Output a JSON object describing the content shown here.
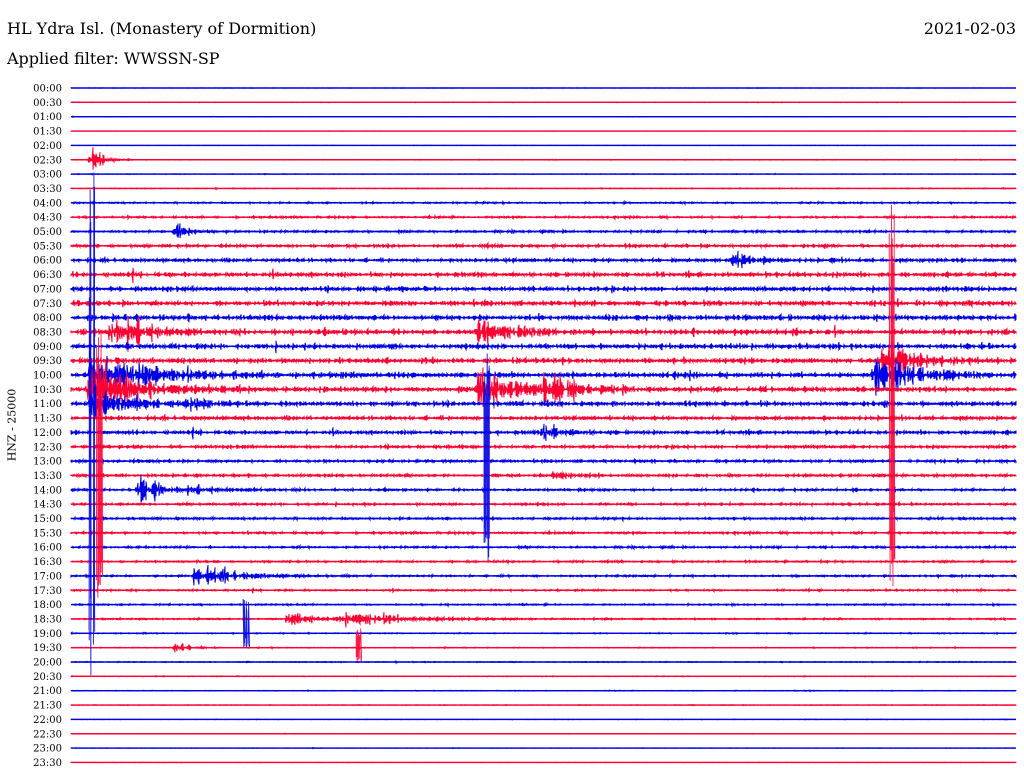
{
  "header": {
    "station": "HL Ydra Isl. (Monastery of Dormition)",
    "date": "2021-02-03",
    "filter": "Applied filter: WWSSN-SP"
  },
  "ylabel": "HNZ - 25000",
  "colors": {
    "even_trace": "#0000e6",
    "odd_trace": "#ff0033",
    "background": "#ffffff"
  },
  "chart_data": {
    "type": "line",
    "title": "HL Ydra Isl. (Monastery of Dormition)",
    "ylabel": "HNZ - 25000",
    "rows": [
      "00:00",
      "00:30",
      "01:00",
      "01:30",
      "02:00",
      "02:30",
      "03:00",
      "03:30",
      "04:00",
      "04:30",
      "05:00",
      "05:30",
      "06:00",
      "06:30",
      "07:00",
      "07:30",
      "08:00",
      "08:30",
      "09:00",
      "09:30",
      "10:00",
      "10:30",
      "11:00",
      "11:30",
      "12:00",
      "12:30",
      "13:00",
      "13:30",
      "14:00",
      "14:30",
      "15:00",
      "15:30",
      "16:00",
      "16:30",
      "17:00",
      "17:30",
      "18:00",
      "18:30",
      "19:00",
      "19:30",
      "20:00",
      "20:30",
      "21:00",
      "21:30",
      "22:00",
      "22:30",
      "23:00",
      "23:30"
    ],
    "noise_level": [
      0.2,
      0.4,
      0.3,
      0.2,
      0.3,
      0.6,
      0.5,
      0.7,
      1.5,
      1.8,
      2.2,
      2.8,
      3.5,
      4.2,
      4.5,
      4.8,
      5.0,
      5.2,
      5.0,
      4.8,
      4.8,
      4.6,
      4.2,
      3.8,
      3.5,
      3.0,
      2.8,
      2.6,
      2.4,
      2.2,
      2.2,
      2.0,
      2.0,
      1.8,
      1.8,
      1.6,
      1.5,
      1.4,
      1.0,
      0.8,
      0.8,
      0.6,
      0.6,
      0.5,
      0.4,
      0.4,
      0.3,
      0.3
    ],
    "events": [
      {
        "row": 5,
        "x": 0.02,
        "amp": 28,
        "dur": 0.01
      },
      {
        "row": 10,
        "x": 0.11,
        "amp": 10,
        "dur": 0.015
      },
      {
        "row": 12,
        "x": 0.7,
        "amp": 12,
        "dur": 0.02
      },
      {
        "row": 17,
        "x": 0.04,
        "amp": 30,
        "dur": 0.03
      },
      {
        "row": 17,
        "x": 0.43,
        "amp": 22,
        "dur": 0.03
      },
      {
        "row": 19,
        "x": 0.86,
        "amp": 28,
        "dur": 0.03
      },
      {
        "row": 20,
        "x": 0.02,
        "amp": 40,
        "dur": 0.05
      },
      {
        "row": 20,
        "x": 0.85,
        "amp": 34,
        "dur": 0.04
      },
      {
        "row": 21,
        "x": 0.02,
        "amp": 36,
        "dur": 0.05
      },
      {
        "row": 21,
        "x": 0.43,
        "amp": 30,
        "dur": 0.05
      },
      {
        "row": 21,
        "x": 0.5,
        "amp": 20,
        "dur": 0.02
      },
      {
        "row": 22,
        "x": 0.02,
        "amp": 22,
        "dur": 0.04
      },
      {
        "row": 22,
        "x": 0.12,
        "amp": 10,
        "dur": 0.02
      },
      {
        "row": 24,
        "x": 0.5,
        "amp": 12,
        "dur": 0.02
      },
      {
        "row": 27,
        "x": 0.51,
        "amp": 12,
        "dur": 0.015
      },
      {
        "row": 28,
        "x": 0.07,
        "amp": 16,
        "dur": 0.04
      },
      {
        "row": 34,
        "x": 0.13,
        "amp": 18,
        "dur": 0.035
      },
      {
        "row": 37,
        "x": 0.23,
        "amp": 14,
        "dur": 0.03
      },
      {
        "row": 37,
        "x": 0.29,
        "amp": 10,
        "dur": 0.06
      },
      {
        "row": 39,
        "x": 0.11,
        "amp": 12,
        "dur": 0.01
      }
    ],
    "spikes": [
      {
        "x": 0.022,
        "from_row": 5,
        "to_row": 42
      },
      {
        "x": 0.03,
        "from_row": 17,
        "to_row": 36
      },
      {
        "x": 0.44,
        "from_row": 18,
        "to_row": 33
      },
      {
        "x": 0.868,
        "from_row": 8,
        "to_row": 35
      },
      {
        "x": 0.185,
        "from_row": 36,
        "to_row": 39
      },
      {
        "x": 0.305,
        "from_row": 38,
        "to_row": 40
      }
    ]
  }
}
